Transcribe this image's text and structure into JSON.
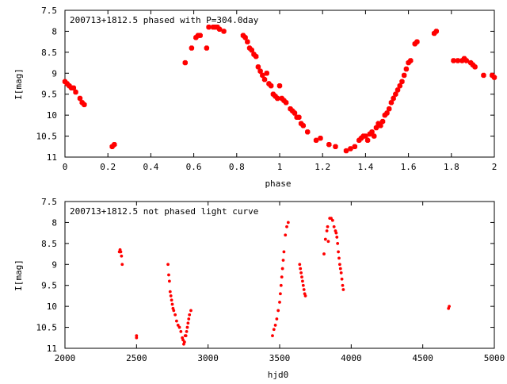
{
  "chart_data": [
    {
      "type": "scatter",
      "title": "200713+1812.5 phased with P=304.0day",
      "xlabel": "phase",
      "ylabel": "I[mag]",
      "xlim": [
        0,
        2
      ],
      "ylim": [
        11,
        7.5
      ],
      "y_inverted": true,
      "grid": false,
      "marker_color": "#ff0000",
      "x_ticks": [
        "0",
        "0.2",
        "0.4",
        "0.6",
        "0.8",
        "1",
        "1.2",
        "1.4",
        "1.6",
        "1.8",
        "2"
      ],
      "y_ticks": [
        "7.5",
        "8",
        "8.5",
        "9",
        "9.5",
        "10",
        "10.5",
        "11"
      ],
      "series": [
        {
          "x": [
            0.0,
            0.01,
            0.02,
            0.03,
            0.04,
            0.05,
            0.07,
            0.08,
            0.09,
            0.22,
            0.23,
            0.56,
            0.59,
            0.61,
            0.62,
            0.63,
            0.66,
            0.67,
            0.69,
            0.7,
            0.71,
            0.72,
            0.74,
            0.83,
            0.84,
            0.85,
            0.86,
            0.87,
            0.88,
            0.89,
            0.9,
            0.91,
            0.92,
            0.93,
            0.94,
            0.95,
            0.96,
            0.97,
            0.98,
            0.99,
            1.0,
            1.01,
            1.02,
            1.03,
            1.05,
            1.06,
            1.07,
            1.08,
            1.09,
            1.1,
            1.11,
            1.13,
            1.17,
            1.19,
            1.23,
            1.26,
            1.31,
            1.33,
            1.35,
            1.37,
            1.38,
            1.39,
            1.4,
            1.41,
            1.42,
            1.43,
            1.44,
            1.45,
            1.46,
            1.47,
            1.48,
            1.49,
            1.5,
            1.51,
            1.52,
            1.53,
            1.54,
            1.55,
            1.56,
            1.57,
            1.58,
            1.59,
            1.6,
            1.61,
            1.63,
            1.64,
            1.72,
            1.73,
            1.81,
            1.83,
            1.85,
            1.86,
            1.87,
            1.89,
            1.9,
            1.91,
            1.95,
            1.99,
            2.0
          ],
          "y": [
            9.2,
            9.25,
            9.3,
            9.35,
            9.35,
            9.45,
            9.6,
            9.7,
            9.75,
            10.75,
            10.7,
            8.75,
            8.4,
            8.15,
            8.1,
            8.1,
            8.4,
            7.9,
            7.9,
            7.9,
            7.9,
            7.95,
            8.0,
            8.1,
            8.15,
            8.25,
            8.4,
            8.45,
            8.55,
            8.6,
            8.85,
            8.95,
            9.05,
            9.15,
            9.0,
            9.25,
            9.3,
            9.5,
            9.55,
            9.6,
            9.3,
            9.6,
            9.65,
            9.7,
            9.85,
            9.9,
            9.95,
            10.05,
            10.05,
            10.2,
            10.25,
            10.4,
            10.6,
            10.55,
            10.7,
            10.75,
            10.85,
            10.8,
            10.75,
            10.6,
            10.55,
            10.5,
            10.5,
            10.6,
            10.45,
            10.4,
            10.5,
            10.3,
            10.2,
            10.25,
            10.15,
            10.0,
            9.95,
            9.85,
            9.7,
            9.6,
            9.5,
            9.4,
            9.3,
            9.2,
            9.05,
            8.9,
            8.75,
            8.7,
            8.3,
            8.25,
            8.05,
            8.0,
            8.7,
            8.7,
            8.7,
            8.65,
            8.7,
            8.75,
            8.8,
            8.85,
            9.05,
            9.05,
            9.1
          ]
        }
      ]
    },
    {
      "type": "scatter",
      "title": "200713+1812.5 not phased light curve",
      "xlabel": "hjd0",
      "ylabel": "I[mag]",
      "xlim": [
        2000,
        5000
      ],
      "ylim": [
        11,
        7.5
      ],
      "y_inverted": true,
      "grid": false,
      "marker_color": "#ff0000",
      "x_ticks": [
        "2000",
        "2500",
        "3000",
        "3500",
        "4000",
        "4500",
        "5000"
      ],
      "y_ticks": [
        "7.5",
        "8",
        "8.5",
        "9",
        "9.5",
        "10",
        "10.5",
        "11"
      ],
      "series": [
        {
          "x": [
            2380,
            2385,
            2390,
            2395,
            2400,
            2500,
            2500,
            2720,
            2725,
            2730,
            2735,
            2740,
            2745,
            2750,
            2755,
            2760,
            2770,
            2780,
            2790,
            2800,
            2810,
            2820,
            2825,
            2830,
            2835,
            2840,
            2845,
            2850,
            2855,
            2860,
            2865,
            2870,
            2880,
            3450,
            3460,
            3470,
            3480,
            3490,
            3500,
            3505,
            3510,
            3515,
            3520,
            3525,
            3530,
            3540,
            3550,
            3560,
            3640,
            3645,
            3650,
            3655,
            3660,
            3665,
            3670,
            3675,
            3680,
            3810,
            3820,
            3830,
            3835,
            3840,
            3850,
            3860,
            3870,
            3880,
            3890,
            3895,
            3900,
            3905,
            3910,
            3915,
            3920,
            3925,
            3930,
            3935,
            3940,
            3945,
            4680,
            4685
          ],
          "y": [
            8.7,
            8.65,
            8.7,
            8.8,
            9.0,
            10.7,
            10.75,
            9.0,
            9.25,
            9.4,
            9.65,
            9.75,
            9.85,
            9.95,
            10.05,
            10.1,
            10.2,
            10.35,
            10.45,
            10.5,
            10.6,
            10.75,
            10.8,
            10.9,
            10.85,
            10.7,
            10.7,
            10.6,
            10.5,
            10.4,
            10.3,
            10.2,
            10.1,
            10.7,
            10.55,
            10.45,
            10.3,
            10.1,
            9.9,
            9.7,
            9.5,
            9.3,
            9.1,
            8.9,
            8.7,
            8.3,
            8.1,
            8.0,
            9.0,
            9.1,
            9.2,
            9.3,
            9.4,
            9.5,
            9.6,
            9.7,
            9.75,
            8.75,
            8.4,
            8.2,
            8.1,
            8.45,
            7.9,
            7.9,
            7.95,
            8.1,
            8.2,
            8.25,
            8.35,
            8.5,
            8.7,
            8.85,
            9.0,
            9.1,
            9.2,
            9.35,
            9.5,
            9.6,
            10.05,
            10.0
          ]
        }
      ]
    }
  ]
}
